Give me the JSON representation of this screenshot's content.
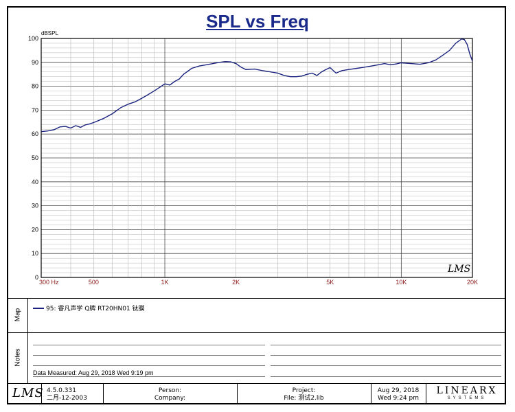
{
  "chart_data": {
    "type": "line",
    "title": "SPL vs Freq",
    "ylabel": "dBSPL",
    "xlabel": "",
    "x_scale": "log",
    "xlim": [
      300,
      20000
    ],
    "ylim": [
      0,
      100
    ],
    "x_ticks": [
      {
        "value": 300,
        "label": "300 Hz"
      },
      {
        "value": 500,
        "label": "500"
      },
      {
        "value": 1000,
        "label": "1K"
      },
      {
        "value": 2000,
        "label": "2K"
      },
      {
        "value": 5000,
        "label": "5K"
      },
      {
        "value": 10000,
        "label": "10K"
      },
      {
        "value": 20000,
        "label": "20K"
      }
    ],
    "y_ticks": [
      0,
      10,
      20,
      30,
      40,
      50,
      60,
      70,
      80,
      90,
      100
    ],
    "grid": true,
    "line_color": "#1a237e",
    "series": [
      {
        "name": "95: 睿凡声学 Q牌 RT20HN01 钛膜",
        "x": [
          300,
          320,
          340,
          360,
          380,
          400,
          420,
          440,
          460,
          480,
          500,
          550,
          600,
          650,
          700,
          750,
          800,
          850,
          900,
          950,
          1000,
          1050,
          1100,
          1150,
          1200,
          1300,
          1400,
          1500,
          1600,
          1700,
          1800,
          1900,
          2000,
          2100,
          2200,
          2400,
          2600,
          2800,
          3000,
          3200,
          3400,
          3600,
          3800,
          4000,
          4200,
          4400,
          4600,
          4800,
          5000,
          5300,
          5600,
          6000,
          6500,
          7000,
          7500,
          8000,
          8500,
          9000,
          9500,
          10000,
          11000,
          12000,
          13000,
          14000,
          15000,
          16000,
          17000,
          18000,
          18500,
          19000,
          19500,
          20000
        ],
        "y": [
          61,
          61.3,
          61.8,
          63,
          63.2,
          62.5,
          63.5,
          62.8,
          63.8,
          64.2,
          64.8,
          66.5,
          68.5,
          71,
          72.5,
          73.5,
          75,
          76.5,
          78,
          79.5,
          81,
          80.5,
          82,
          83,
          85,
          87.5,
          88.5,
          89,
          89.5,
          90,
          90.3,
          90.2,
          89.5,
          88,
          87,
          87.2,
          86.5,
          86,
          85.5,
          84.5,
          84,
          84,
          84.3,
          85,
          85.5,
          84.5,
          86,
          87,
          87.8,
          85.5,
          86.5,
          87,
          87.5,
          88,
          88.5,
          89,
          89.5,
          89,
          89.3,
          89.8,
          89.5,
          89.2,
          89.8,
          91,
          93,
          95,
          98,
          99.8,
          99.5,
          97.5,
          93.5,
          90.5
        ]
      }
    ]
  },
  "panels": {
    "map_label": "Map",
    "notes_label": "Notes"
  },
  "legend": {
    "entry": "95: 睿凡声学 Q牌 RT20HN01 钛膜"
  },
  "notes": {
    "measured": "Data Measured: Aug 29, 2018  Wed  9:19 pm"
  },
  "footer": {
    "logo_text": "LMS",
    "version": "4.5.0.331",
    "version_date": "二月-12-2003",
    "person_label": "Person:",
    "company_label": "Company:",
    "project_label": "Project:",
    "file_label": "File: 测试2.lib",
    "date": "Aug 29, 2018",
    "day_time": "Wed  9:24 pm",
    "brand": "LINEARX",
    "brand_sub": "SYSTEMS"
  },
  "watermark": "LMS"
}
